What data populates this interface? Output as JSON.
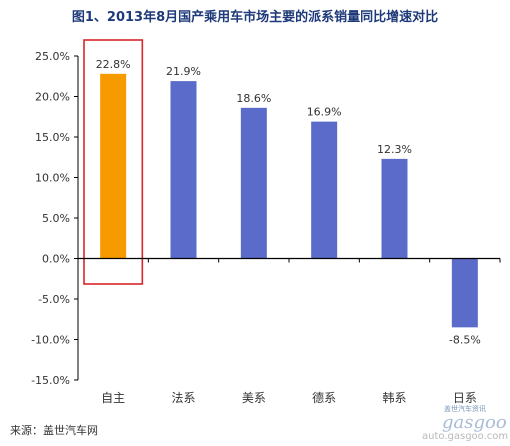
{
  "title": "图1、2013年8月国产乘用车市场主要的派系销量同比增速对比",
  "source": "来源：盖世汽车网",
  "watermark": {
    "cn": "盖世汽车资讯",
    "logo": "gasgoo",
    "url": "auto.gasgoo.com"
  },
  "colors": {
    "highlight_bar": "#F79A00",
    "bar": "#5B6BC9",
    "highlight_box": "#D9262C",
    "axis": "#000000",
    "text": "#333333"
  },
  "chart_data": {
    "type": "bar",
    "categories": [
      "自主",
      "法系",
      "美系",
      "德系",
      "韩系",
      "日系"
    ],
    "values": [
      22.8,
      21.9,
      18.6,
      16.9,
      12.3,
      -8.5
    ],
    "value_labels": [
      "22.8%",
      "21.9%",
      "18.6%",
      "16.9%",
      "12.3%",
      "-8.5%"
    ],
    "highlight_index": 0,
    "ylim": [
      -15,
      25
    ],
    "yticks": [
      25,
      20,
      15,
      10,
      5,
      0,
      -5,
      -10,
      -15
    ],
    "ytick_labels": [
      "25.0%",
      "20.0%",
      "15.0%",
      "10.0%",
      "5.0%",
      "0.0%",
      "-5.0%",
      "-10.0%",
      "-15.0%"
    ],
    "grid": false,
    "legend": "none"
  }
}
